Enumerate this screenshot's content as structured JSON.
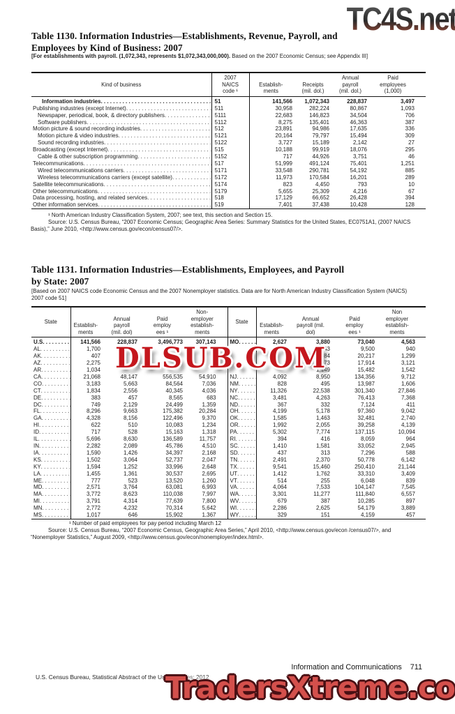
{
  "watermarks": {
    "top": "TC4S.net",
    "middle": "DLSUB.COM",
    "bottom": "TradersXtreme.com"
  },
  "table1130": {
    "title": "Table 1130. Information Industries—Establishments, Revenue, Payroll, and\nEmployees by Kind of Business: 2007",
    "note_bold": "[For establishments with payroll. (1,072,343, represents $1,072,343,000,000).",
    "note_rest": " Based on the 2007 Economic Census; see Appendix III]",
    "headers": {
      "kind": "Kind of business",
      "naics": "2007\nNAICS\ncode ¹",
      "establishments": "Establish-\nments",
      "receipts": "Receipts\n(mil. dol.)",
      "payroll": "Annual\npayroll\n(mil. dol.)",
      "employees": "Paid\nemployees\n(1,000)"
    },
    "rows": [
      {
        "label": "Information industries",
        "ind": "b",
        "bold": true,
        "naics": "51",
        "v": [
          "141,566",
          "1,072,343",
          "228,837",
          "3,497"
        ]
      },
      {
        "label": "Publishing industries (except Internet)",
        "ind": "0",
        "bold": false,
        "naics": "511",
        "v": [
          "30,958",
          "282,224",
          "80,867",
          "1,093"
        ]
      },
      {
        "label": "Newspaper, periodical, book, & directory publishers",
        "ind": "1",
        "bold": false,
        "naics": "5111",
        "v": [
          "22,683",
          "146,823",
          "34,504",
          "706"
        ]
      },
      {
        "label": "Software publishers",
        "ind": "1",
        "bold": false,
        "naics": "5112",
        "v": [
          "8,275",
          "135,401",
          "46,363",
          "387"
        ]
      },
      {
        "label": "Motion picture & sound recording industries",
        "ind": "0",
        "bold": false,
        "naics": "512",
        "v": [
          "23,891",
          "94,986",
          "17,635",
          "336"
        ]
      },
      {
        "label": "Motion picture & video industries",
        "ind": "1",
        "bold": false,
        "naics": "5121",
        "v": [
          "20,164",
          "79,797",
          "15,494",
          "309"
        ]
      },
      {
        "label": "Sound recording industries",
        "ind": "1",
        "bold": false,
        "naics": "5122",
        "v": [
          "3,727",
          "15,189",
          "2,142",
          "27"
        ]
      },
      {
        "label": "Broadcasting (except Internet)",
        "ind": "0",
        "bold": false,
        "naics": "515",
        "v": [
          "10,188",
          "99,919",
          "18,076",
          "295"
        ]
      },
      {
        "label": "Cable & other subscription programming",
        "ind": "1",
        "bold": false,
        "naics": "5152",
        "v": [
          "717",
          "44,926",
          "3,751",
          "46"
        ]
      },
      {
        "label": "Telecommunications",
        "ind": "0",
        "bold": false,
        "naics": "517",
        "v": [
          "51,999",
          "491,124",
          "75,401",
          "1,251"
        ]
      },
      {
        "label": "Wired telecommunications carriers",
        "ind": "1",
        "bold": false,
        "naics": "5171",
        "v": [
          "33,548",
          "290,781",
          "54,192",
          "885"
        ]
      },
      {
        "label": "Wireless telecommunications carriers (except satellite)",
        "ind": "1",
        "bold": false,
        "naics": "5172",
        "v": [
          "11,973",
          "170,584",
          "16,201",
          "289"
        ]
      },
      {
        "label": "Satellite telecommunications",
        "ind": "0",
        "bold": false,
        "naics": "5174",
        "v": [
          "823",
          "4,450",
          "793",
          "10"
        ]
      },
      {
        "label": "Other telecommunications",
        "ind": "0",
        "bold": false,
        "naics": "5179",
        "v": [
          "5,655",
          "25,309",
          "4,216",
          "67"
        ]
      },
      {
        "label": "Data processing, hosting, and related services",
        "ind": "0",
        "bold": false,
        "naics": "518",
        "v": [
          "17,129",
          "66,652",
          "26,428",
          "394"
        ]
      },
      {
        "label": "Other information services",
        "ind": "0",
        "bold": false,
        "naics": "519",
        "v": [
          "7,401",
          "37,438",
          "10,428",
          "128"
        ]
      }
    ],
    "footnote": "¹ North American Industry Classification System, 2007; see text, this section and Section 15.",
    "source": "Source: U.S. Census Bureau, “2007 Economic Census; Geographic Area Series: Summary Statistics for the United States, EC0751A1, (2007 NAICS Basis),” June 2010, <http://www.census.gov/econ/census07/>."
  },
  "table1131": {
    "title": "Table 1131. Information Industries—Establishments, Employees, and Payroll\nby State: 2007",
    "note": "[Based on 2007 NAICS code Economic Census and the 2007 Nonemployer statistics. Data are for North American Industry Classification System (NAICS) 2007 code 51]",
    "headers": {
      "state_left": "State",
      "establishments_left": "Establish-\nments",
      "payroll_left": "Annual\npayroll\n(mil. dol)",
      "paid_left": "Paid\nemploy\nees ¹",
      "nonemployer_left": "Non-\nemployer\nestablish-\nments",
      "state_right": "State",
      "establishments_right": "Establish-\nments",
      "payroll_right": "Annual\npayroll (mil.\ndol)",
      "paid_right": "Paid\nemploy\nees ¹",
      "nonemployer_right": "Non\nemployer\nestablish-\nments"
    },
    "left_rows": [
      [
        "U.S",
        "141,566",
        "228,837",
        "3,496,773",
        "307,143"
      ],
      [
        "AL",
        "1,700",
        "",
        "",
        ""
      ],
      [
        "AK",
        "407",
        "",
        "",
        ""
      ],
      [
        "AZ",
        "2,275",
        "",
        "",
        ""
      ],
      [
        "AR",
        "1,034",
        "",
        "",
        ""
      ],
      [
        "CA",
        "21,068",
        "48,147",
        "556,535",
        "54,910"
      ],
      [
        "CO",
        "3,183",
        "5,663",
        "84,564",
        "7,036"
      ],
      [
        "CT",
        "1,834",
        "2,556",
        "40,345",
        "4,036"
      ],
      [
        "DE",
        "383",
        "457",
        "8,565",
        "683"
      ],
      [
        "DC",
        "749",
        "2,129",
        "24,499",
        "1,359"
      ],
      [
        "FL",
        "8,296",
        "9,663",
        "175,382",
        "20,284"
      ],
      [
        "GA",
        "4,328",
        "8,156",
        "122,496",
        "9,370"
      ],
      [
        "HI",
        "622",
        "510",
        "10,083",
        "1,234"
      ],
      [
        "ID",
        "717",
        "528",
        "15,163",
        "1,318"
      ],
      [
        "IL",
        "5,696",
        "8,630",
        "136,589",
        "11,757"
      ],
      [
        "IN",
        "2,282",
        "2,089",
        "45,786",
        "4,510"
      ],
      [
        "IA",
        "1,590",
        "1,426",
        "34,397",
        "2,168"
      ],
      [
        "KS",
        "1,502",
        "3,064",
        "52,737",
        "2,047"
      ],
      [
        "KY",
        "1,594",
        "1,252",
        "33,996",
        "2,648"
      ],
      [
        "LA",
        "1,455",
        "1,361",
        "30,537",
        "2,695"
      ],
      [
        "ME",
        "777",
        "523",
        "13,520",
        "1,260"
      ],
      [
        "MD",
        "2,571",
        "3,764",
        "63,081",
        "6,993"
      ],
      [
        "MA",
        "3,772",
        "8,623",
        "110,038",
        "7,997"
      ],
      [
        "MI",
        "3,791",
        "4,314",
        "77,639",
        "7,800"
      ],
      [
        "MN",
        "2,772",
        "4,232",
        "70,314",
        "5,642"
      ],
      [
        "MS",
        "1,017",
        "646",
        "15,902",
        "1,367"
      ]
    ],
    "right_rows": [
      [
        "MO",
        "2,627",
        "3,880",
        "73,040",
        "4,563"
      ],
      [
        "",
        "",
        "343",
        "9,500",
        "940"
      ],
      [
        "",
        "",
        "984",
        "20,217",
        "1,299"
      ],
      [
        "",
        "",
        "973",
        "17,914",
        "3,121"
      ],
      [
        "",
        "",
        "1,149",
        "15,482",
        "1,542"
      ],
      [
        "NJ",
        "4,092",
        "8,950",
        "134,356",
        "9,712"
      ],
      [
        "NM",
        "828",
        "495",
        "13,987",
        "1,606"
      ],
      [
        "NY",
        "11,326",
        "22,538",
        "301,340",
        "27,846"
      ],
      [
        "NC",
        "3,481",
        "4,263",
        "76,413",
        "7,368"
      ],
      [
        "ND",
        "367",
        "332",
        "7,124",
        "411"
      ],
      [
        "OH",
        "4,199",
        "5,178",
        "97,360",
        "9,042"
      ],
      [
        "OK",
        "1,585",
        "1,463",
        "32,481",
        "2,740"
      ],
      [
        "OR",
        "1,992",
        "2,055",
        "39,258",
        "4,139"
      ],
      [
        "PA",
        "5,302",
        "7,774",
        "137,115",
        "10,094"
      ],
      [
        "RI",
        "394",
        "416",
        "8,059",
        "964"
      ],
      [
        "SC",
        "1,410",
        "1,581",
        "33,052",
        "2,945"
      ],
      [
        "SD",
        "437",
        "313",
        "7,296",
        "588"
      ],
      [
        "TN",
        "2,491",
        "2,370",
        "50,778",
        "6,142"
      ],
      [
        "TX",
        "9,541",
        "15,460",
        "250,410",
        "21,144"
      ],
      [
        "UT",
        "1,412",
        "1,762",
        "33,310",
        "3,409"
      ],
      [
        "VT",
        "514",
        "255",
        "6,048",
        "839"
      ],
      [
        "VA",
        "4,064",
        "7,533",
        "104,147",
        "7,545"
      ],
      [
        "WA",
        "3,301",
        "11,277",
        "111,840",
        "6,557"
      ],
      [
        "WV",
        "679",
        "387",
        "10,285",
        "897"
      ],
      [
        "WI",
        "2,286",
        "2,625",
        "54,179",
        "3,889"
      ],
      [
        "WY",
        "329",
        "151",
        "4,159",
        "457"
      ]
    ],
    "footnote": "¹ Number of paid employees for pay period including March 12",
    "source": "Source: U.S. Census Bureau, “2007 Economic Census, Geographic Area Series,” April 2010, <http://www.census.gov/econ /census07/>,  and “Nonemployer Statistics,” August 2009, <http://www.census.gov/econ/nonemployer/index.html>."
  },
  "footer": {
    "section": "Information and Communications",
    "page": "711",
    "credit": "U.S. Census Bureau, Statistical Abstract of the United States: 2012"
  }
}
